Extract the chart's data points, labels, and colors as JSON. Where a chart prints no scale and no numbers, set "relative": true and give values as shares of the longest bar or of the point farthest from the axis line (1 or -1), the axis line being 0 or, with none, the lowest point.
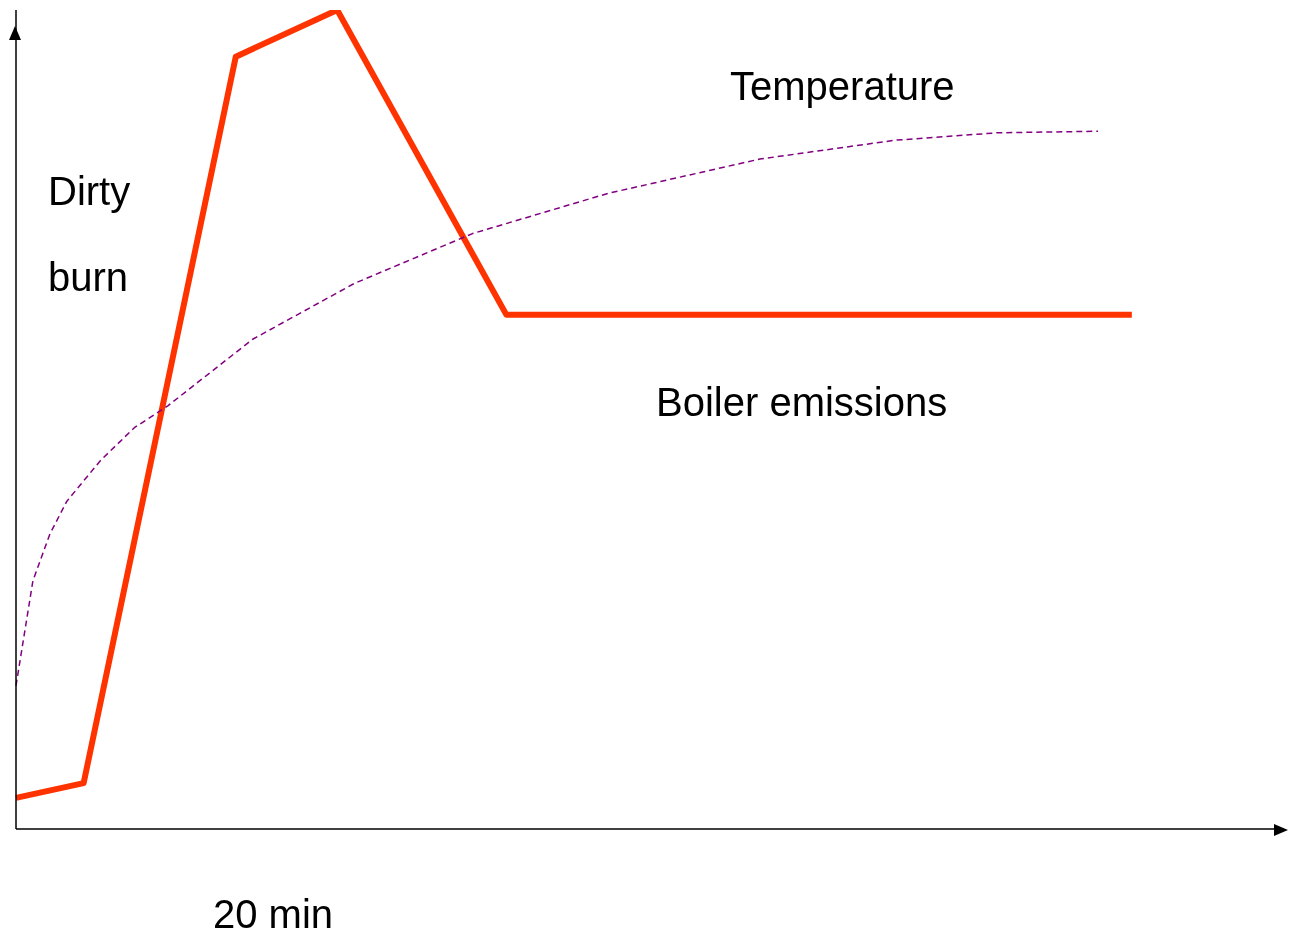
{
  "chart_data": {
    "type": "line",
    "relative": true,
    "marker": "none",
    "xlabel": "20 min",
    "annotations": [
      "Dirty burn"
    ],
    "categories": [
      null,
      null,
      null,
      null,
      null,
      null,
      null,
      null,
      null,
      null,
      null,
      null,
      null,
      null,
      null,
      null,
      null,
      null,
      null,
      null,
      null,
      null,
      null,
      null,
      null,
      null,
      null,
      null,
      null,
      null,
      null,
      null,
      null,
      null,
      null,
      null,
      null,
      null,
      null,
      null,
      null,
      null,
      null,
      null,
      null,
      null,
      null,
      null,
      null,
      null,
      null,
      null,
      null,
      null,
      null,
      null,
      null,
      null,
      null,
      null,
      null,
      null,
      null,
      null,
      null,
      null,
      null,
      null,
      null,
      null,
      null,
      null,
      null,
      null,
      null,
      null
    ],
    "series": [
      {
        "name": "Boiler emissions",
        "color": "#ff3300",
        "line_style": "solid",
        "values": [
          0.038,
          null,
          null,
          null,
          0.056,
          null,
          null,
          null,
          null,
          null,
          null,
          null,
          null,
          0.943,
          null,
          null,
          null,
          null,
          null,
          1,
          null,
          null,
          null,
          null,
          null,
          null,
          null,
          null,
          null,
          0.628,
          null,
          null,
          null,
          null,
          null,
          null,
          null,
          null,
          null,
          null,
          null,
          null,
          null,
          null,
          null,
          null,
          null,
          null,
          null,
          null,
          null,
          null,
          null,
          null,
          null,
          null,
          null,
          null,
          null,
          null,
          null,
          null,
          null,
          null,
          null,
          null,
          0.628,
          null,
          null,
          null,
          null,
          null,
          null,
          null,
          null,
          null
        ]
      },
      {
        "name": "Temperature",
        "color": "#800080",
        "line_style": "dashed",
        "values": [
          0.175,
          0.303,
          0.36,
          0.4,
          null,
          0.45,
          null,
          0.49,
          null,
          0.517,
          null,
          null,
          null,
          null,
          0.598,
          null,
          null,
          null,
          null,
          null,
          0.666,
          null,
          null,
          null,
          null,
          null,
          null,
          0.727,
          null,
          null,
          null,
          null,
          null,
          null,
          null,
          0.776,
          null,
          null,
          null,
          null,
          null,
          null,
          null,
          null,
          0.818,
          null,
          null,
          null,
          null,
          null,
          null,
          null,
          0.841,
          null,
          null,
          null,
          null,
          null,
          0.85,
          null,
          null,
          null,
          null,
          null,
          0.852,
          null,
          null,
          null,
          null,
          null,
          null,
          null,
          null,
          null,
          null,
          null
        ]
      }
    ]
  }
}
